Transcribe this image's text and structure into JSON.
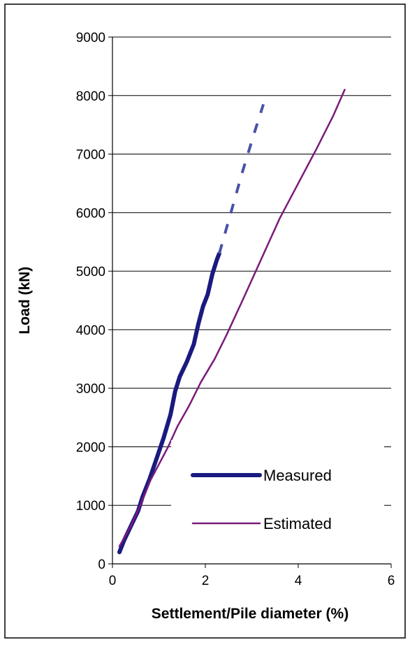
{
  "chart_data": {
    "type": "line",
    "title": "",
    "xlabel": "Settlement/Pile diameter (%)",
    "ylabel": "Load (kN)",
    "xlim": [
      0,
      6
    ],
    "ylim": [
      0,
      9000
    ],
    "xticks": [
      0,
      2,
      4,
      6
    ],
    "yticks": [
      0,
      1000,
      2000,
      3000,
      4000,
      5000,
      6000,
      7000,
      8000,
      9000
    ],
    "grid": "horizontal",
    "legend_position": "bottom-right",
    "colors": {
      "measured": "#1a1a80",
      "estimated": "#7a1a7a",
      "extrapolated": "#4a52a8"
    },
    "series": [
      {
        "name": "Measured",
        "key": "measured",
        "style": "thick-solid",
        "x": [
          0.15,
          0.25,
          0.4,
          0.55,
          0.65,
          0.8,
          0.95,
          1.1,
          1.25,
          1.35,
          1.45,
          1.6,
          1.75,
          1.85,
          1.95,
          2.05,
          2.15,
          2.25,
          2.3
        ],
        "y": [
          200,
          400,
          650,
          900,
          1150,
          1450,
          1800,
          2150,
          2550,
          2950,
          3200,
          3450,
          3750,
          4100,
          4400,
          4600,
          4950,
          5200,
          5300
        ]
      },
      {
        "name": "",
        "key": "extrapolated",
        "style": "dashed",
        "x": [
          2.3,
          2.55,
          2.8,
          3.05,
          3.25
        ],
        "y": [
          5300,
          6000,
          6700,
          7350,
          7850
        ]
      },
      {
        "name": "Estimated",
        "key": "estimated",
        "style": "thin-solid",
        "x": [
          0.15,
          0.4,
          0.6,
          0.8,
          1.0,
          1.2,
          1.4,
          1.65,
          1.9,
          2.2,
          2.45,
          2.8,
          3.2,
          3.6,
          4.0,
          4.4,
          4.75,
          5.0
        ],
        "y": [
          300,
          650,
          1000,
          1400,
          1700,
          2000,
          2350,
          2700,
          3100,
          3500,
          3900,
          4500,
          5200,
          5900,
          6500,
          7100,
          7650,
          8100
        ]
      }
    ]
  }
}
